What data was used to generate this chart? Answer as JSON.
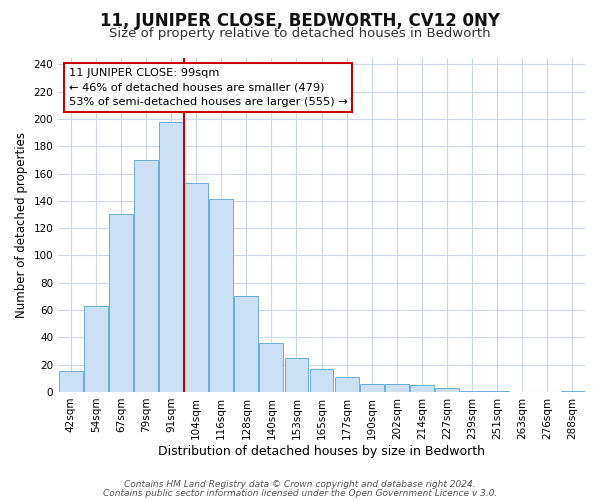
{
  "title": "11, JUNIPER CLOSE, BEDWORTH, CV12 0NY",
  "subtitle": "Size of property relative to detached houses in Bedworth",
  "xlabel": "Distribution of detached houses by size in Bedworth",
  "ylabel": "Number of detached properties",
  "bar_labels": [
    "42sqm",
    "54sqm",
    "67sqm",
    "79sqm",
    "91sqm",
    "104sqm",
    "116sqm",
    "128sqm",
    "140sqm",
    "153sqm",
    "165sqm",
    "177sqm",
    "190sqm",
    "202sqm",
    "214sqm",
    "227sqm",
    "239sqm",
    "251sqm",
    "263sqm",
    "276sqm",
    "288sqm"
  ],
  "bar_values": [
    15,
    63,
    130,
    170,
    198,
    153,
    141,
    70,
    36,
    25,
    17,
    11,
    6,
    6,
    5,
    3,
    1,
    1,
    0,
    0,
    1
  ],
  "bar_color": "#cce0f5",
  "bar_edge_color": "#6baed6",
  "vline_x": 4.5,
  "vline_color": "#cc0000",
  "ylim": [
    0,
    245
  ],
  "yticks": [
    0,
    20,
    40,
    60,
    80,
    100,
    120,
    140,
    160,
    180,
    200,
    220,
    240
  ],
  "annotation_title": "11 JUNIPER CLOSE: 99sqm",
  "annotation_line1": "← 46% of detached houses are smaller (479)",
  "annotation_line2": "53% of semi-detached houses are larger (555) →",
  "annotation_box_color": "#ffffff",
  "annotation_box_edge": "#cc0000",
  "footer1": "Contains HM Land Registry data © Crown copyright and database right 2024.",
  "footer2": "Contains public sector information licensed under the Open Government Licence v 3.0.",
  "bg_color": "#ffffff",
  "grid_color": "#ccd9e8",
  "title_fontsize": 12,
  "subtitle_fontsize": 9.5,
  "ann_fontsize": 8.2,
  "ylabel_fontsize": 8.5,
  "xlabel_fontsize": 9,
  "tick_fontsize": 7.5,
  "footer_fontsize": 6.5
}
